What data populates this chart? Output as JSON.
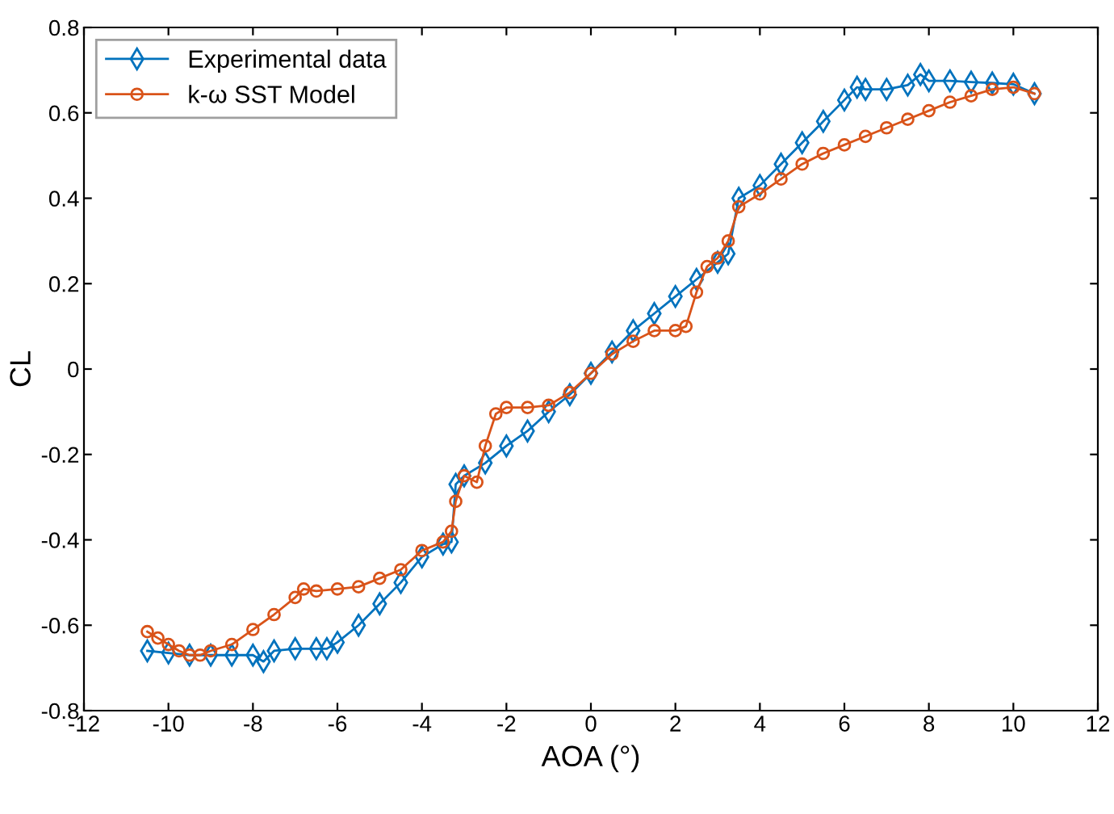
{
  "chart_data": {
    "type": "line",
    "xlabel": "AOA (°)",
    "ylabel": "CL",
    "xlim": [
      -12,
      12
    ],
    "xticks": [
      -12,
      -10,
      -8,
      -6,
      -4,
      -2,
      0,
      2,
      4,
      6,
      8,
      10,
      12
    ],
    "ylim": [
      -0.8,
      0.8
    ],
    "yticks": [
      -0.8,
      -0.6,
      -0.4,
      -0.2,
      0,
      0.2,
      0.4,
      0.6,
      0.8
    ],
    "grid": false,
    "legend": "top left",
    "line_style": "solid",
    "series": [
      {
        "name": "Experimental data",
        "color": "#0072bd",
        "marker": "diamond",
        "x": [
          -10.5,
          -10,
          -9.5,
          -9,
          -8.5,
          -8,
          -7.75,
          -7.5,
          -7,
          -6.5,
          -6.25,
          -6,
          -5.5,
          -5,
          -4.5,
          -4,
          -3.5,
          -3.3,
          -3.2,
          -3,
          -2.5,
          -2,
          -1.5,
          -1,
          -0.5,
          0,
          0.5,
          1,
          1.5,
          2,
          2.5,
          3,
          3.25,
          3.5,
          4,
          4.5,
          5,
          5.5,
          6,
          6.3,
          6.5,
          7,
          7.5,
          7.8,
          8,
          8.5,
          9,
          9.5,
          10,
          10.5
        ],
        "values": [
          -0.66,
          -0.665,
          -0.67,
          -0.67,
          -0.67,
          -0.67,
          -0.685,
          -0.66,
          -0.655,
          -0.655,
          -0.655,
          -0.64,
          -0.6,
          -0.55,
          -0.5,
          -0.44,
          -0.41,
          -0.405,
          -0.27,
          -0.25,
          -0.22,
          -0.18,
          -0.145,
          -0.1,
          -0.06,
          -0.01,
          0.04,
          0.09,
          0.13,
          0.17,
          0.21,
          0.25,
          0.27,
          0.4,
          0.43,
          0.48,
          0.53,
          0.58,
          0.63,
          0.66,
          0.655,
          0.655,
          0.665,
          0.69,
          0.675,
          0.675,
          0.672,
          0.67,
          0.667,
          0.645
        ]
      },
      {
        "name": "k-ω SST Model",
        "color": "#d95319",
        "marker": "circle",
        "x": [
          -10.5,
          -10.25,
          -10,
          -9.75,
          -9.5,
          -9.25,
          -9,
          -8.5,
          -8,
          -7.5,
          -7,
          -6.8,
          -6.5,
          -6,
          -5.5,
          -5,
          -4.5,
          -4,
          -3.5,
          -3.3,
          -3.2,
          -3,
          -2.7,
          -2.5,
          -2.25,
          -2,
          -1.5,
          -1,
          -0.5,
          0,
          0.5,
          1,
          1.5,
          2,
          2.25,
          2.5,
          2.75,
          3,
          3.25,
          3.5,
          4,
          4.5,
          5,
          5.5,
          6,
          6.5,
          7,
          7.5,
          8,
          8.5,
          9,
          9.5,
          10,
          10.5
        ],
        "values": [
          -0.615,
          -0.63,
          -0.645,
          -0.66,
          -0.67,
          -0.67,
          -0.66,
          -0.645,
          -0.61,
          -0.575,
          -0.535,
          -0.515,
          -0.52,
          -0.515,
          -0.51,
          -0.49,
          -0.47,
          -0.425,
          -0.405,
          -0.38,
          -0.31,
          -0.25,
          -0.265,
          -0.18,
          -0.105,
          -0.09,
          -0.09,
          -0.085,
          -0.055,
          -0.01,
          0.035,
          0.065,
          0.09,
          0.09,
          0.1,
          0.18,
          0.24,
          0.26,
          0.3,
          0.38,
          0.41,
          0.445,
          0.48,
          0.505,
          0.525,
          0.545,
          0.565,
          0.585,
          0.605,
          0.625,
          0.64,
          0.655,
          0.66,
          0.645
        ]
      }
    ]
  }
}
